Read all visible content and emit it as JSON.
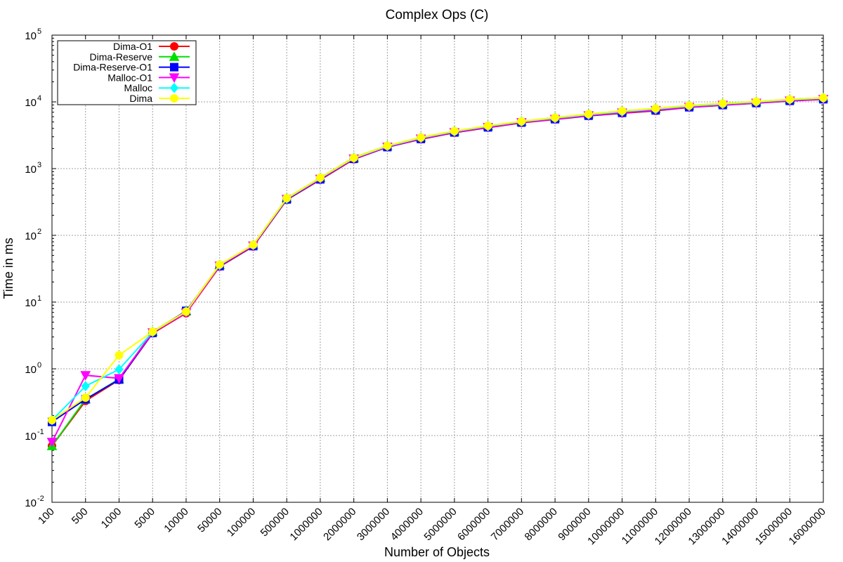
{
  "chart_data": {
    "type": "line",
    "title": "Complex Ops (C)",
    "xlabel": "Number of Objects",
    "ylabel": "Time in ms",
    "yscale": "log",
    "ylim": [
      0.01,
      100000
    ],
    "y_ticks": [
      {
        "base": "10",
        "exp": "-2",
        "value": 0.01
      },
      {
        "base": "10",
        "exp": "-1",
        "value": 0.1
      },
      {
        "base": "10",
        "exp": "0",
        "value": 1
      },
      {
        "base": "10",
        "exp": "1",
        "value": 10
      },
      {
        "base": "10",
        "exp": "2",
        "value": 100
      },
      {
        "base": "10",
        "exp": "3",
        "value": 1000
      },
      {
        "base": "10",
        "exp": "4",
        "value": 10000
      },
      {
        "base": "10",
        "exp": "5",
        "value": 100000
      }
    ],
    "categories": [
      "100",
      "500",
      "1000",
      "5000",
      "10000",
      "50000",
      "100000",
      "500000",
      "1000000",
      "2000000",
      "3000000",
      "4000000",
      "5000000",
      "6000000",
      "7000000",
      "8000000",
      "9000000",
      "10000000",
      "11000000",
      "12000000",
      "13000000",
      "14000000",
      "15000000",
      "16000000"
    ],
    "grid": true,
    "legend_position": "top-left",
    "series": [
      {
        "name": "Dima-O1",
        "color": "#ff0000",
        "marker": "circle",
        "values": [
          0.07,
          0.33,
          0.68,
          3.4,
          6.8,
          34,
          68,
          340,
          680,
          1380,
          2100,
          2750,
          3450,
          4100,
          4850,
          5450,
          6150,
          6750,
          7350,
          8250,
          8900,
          9550,
          10300,
          10900
        ]
      },
      {
        "name": "Dima-Reserve",
        "color": "#00e000",
        "marker": "triangle-up",
        "values": [
          0.07,
          0.35,
          0.7,
          3.6,
          7.3,
          36,
          72,
          360,
          730,
          1460,
          2200,
          2920,
          3650,
          4350,
          5100,
          5800,
          6550,
          7300,
          7950,
          8800,
          9450,
          10100,
          10900,
          11500
        ]
      },
      {
        "name": "Dima-Reserve-O1",
        "color": "#0000ff",
        "marker": "square",
        "values": [
          0.16,
          0.35,
          0.69,
          3.45,
          7.4,
          34.5,
          69,
          345,
          690,
          1400,
          2100,
          2780,
          3480,
          4150,
          4900,
          5500,
          6200,
          6850,
          7450,
          8300,
          8950,
          9600,
          10350,
          10950
        ]
      },
      {
        "name": "Malloc-O1",
        "color": "#ff00ff",
        "marker": "triangle-down",
        "values": [
          0.08,
          0.8,
          0.72,
          3.5,
          6.9,
          35,
          70,
          350,
          700,
          1410,
          2120,
          2800,
          3500,
          4170,
          4920,
          5520,
          6250,
          6880,
          7500,
          8350,
          9000,
          9650,
          10400,
          11000
        ]
      },
      {
        "name": "Malloc",
        "color": "#00ffff",
        "marker": "diamond",
        "values": [
          0.17,
          0.55,
          0.98,
          3.55,
          7.2,
          36,
          72,
          355,
          720,
          1440,
          2170,
          2880,
          3600,
          4300,
          5050,
          5700,
          6450,
          7150,
          7800,
          8650,
          9300,
          9950,
          10750,
          11350
        ]
      },
      {
        "name": "Dima",
        "color": "#ffff00",
        "marker": "circle",
        "values": [
          0.17,
          0.37,
          1.6,
          3.6,
          7.2,
          36.5,
          72,
          360,
          730,
          1450,
          2200,
          2920,
          3650,
          4380,
          5100,
          5800,
          6550,
          7300,
          7950,
          8800,
          9450,
          10100,
          10900,
          11500
        ]
      }
    ]
  }
}
